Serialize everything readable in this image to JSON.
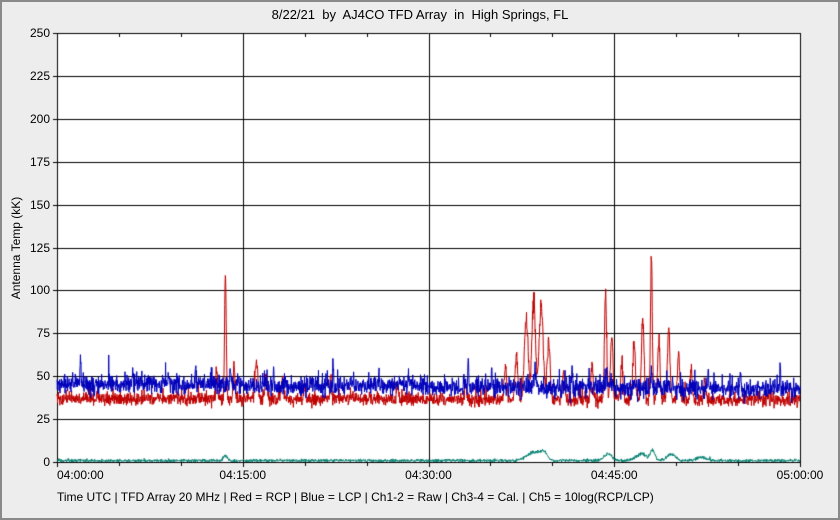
{
  "window": {
    "background": "#ededed",
    "border_color": "#8a8a8a"
  },
  "chart_data": {
    "type": "line",
    "title": "8/22/21  by  AJ4CO TFD Array  in  High Springs, FL",
    "ylabel": "Antenna Temp (kK)",
    "xlabel": "Time UTC | TFD Array 20 MHz | Red = RCP | Blue = LCP | Ch1-2 = Raw | Ch3-4 = Cal. | Ch5 = 10log(RCP/LCP)",
    "ylim": [
      0,
      250
    ],
    "ytick_step": 25,
    "ytick_labels": [
      "250",
      "225",
      "200",
      "175",
      "150",
      "125",
      "100",
      "75",
      "50",
      "25",
      "0"
    ],
    "xtick_labels": [
      "04:00:00",
      "04:15:00",
      "04:30:00",
      "04:45:00",
      "05:00:00"
    ],
    "xtick_minutes": [
      0,
      15,
      30,
      45,
      60
    ],
    "x_minor_step_minutes": 5,
    "grid": true,
    "plot_background": "#ffffff",
    "axis_color": "#000000",
    "series": [
      {
        "name": "Ch5 = 10log(RCP/LCP)",
        "color": "#008070",
        "baseline_start": 0.8,
        "baseline_end": 0.8,
        "noise_sd": 0.45,
        "impulse_p": 0.01,
        "impulse_max": 1.5,
        "clip_min": 0,
        "spikes": [
          {
            "t": 13.6,
            "v": 3.5,
            "w": 0.5
          },
          {
            "t": 38.5,
            "v": 6,
            "w": 1.6
          },
          {
            "t": 39.3,
            "v": 5,
            "w": 0.8
          },
          {
            "t": 44.5,
            "v": 5,
            "w": 0.9
          },
          {
            "t": 47.2,
            "v": 5,
            "w": 1.2
          },
          {
            "t": 48.1,
            "v": 7,
            "w": 0.5
          },
          {
            "t": 49.6,
            "v": 5,
            "w": 1.0
          },
          {
            "t": 52.0,
            "v": 3,
            "w": 1.0
          }
        ]
      },
      {
        "name": "Red = RCP",
        "color": "#c00000",
        "baseline_start": 37,
        "baseline_end": 36,
        "noise_sd": 1.8,
        "impulse_p": 0.05,
        "impulse_max": 7,
        "clip_min": 31,
        "spikes": [
          {
            "t": 12.9,
            "v": 55,
            "w": 0.2
          },
          {
            "t": 13.6,
            "v": 116,
            "w": 0.18
          },
          {
            "t": 14.3,
            "v": 57,
            "w": 0.22
          },
          {
            "t": 16.1,
            "v": 62,
            "w": 0.3
          },
          {
            "t": 16.9,
            "v": 52,
            "w": 0.25
          },
          {
            "t": 18.2,
            "v": 50,
            "w": 0.25
          },
          {
            "t": 20.0,
            "v": 46,
            "w": 0.2
          },
          {
            "t": 22.1,
            "v": 50,
            "w": 0.2
          },
          {
            "t": 27.5,
            "v": 45,
            "w": 0.2
          },
          {
            "t": 33.0,
            "v": 46,
            "w": 0.2
          },
          {
            "t": 36.2,
            "v": 56,
            "w": 0.3
          },
          {
            "t": 37.1,
            "v": 64,
            "w": 0.3
          },
          {
            "t": 37.9,
            "v": 88,
            "w": 0.45
          },
          {
            "t": 38.5,
            "v": 101,
            "w": 0.4
          },
          {
            "t": 39.1,
            "v": 95,
            "w": 0.45
          },
          {
            "t": 39.7,
            "v": 72,
            "w": 0.35
          },
          {
            "t": 40.9,
            "v": 54,
            "w": 0.25
          },
          {
            "t": 43.2,
            "v": 58,
            "w": 0.25
          },
          {
            "t": 44.3,
            "v": 104,
            "w": 0.25
          },
          {
            "t": 44.8,
            "v": 80,
            "w": 0.25
          },
          {
            "t": 45.6,
            "v": 60,
            "w": 0.25
          },
          {
            "t": 46.6,
            "v": 73,
            "w": 0.28
          },
          {
            "t": 47.3,
            "v": 90,
            "w": 0.28
          },
          {
            "t": 48.0,
            "v": 130,
            "w": 0.2
          },
          {
            "t": 48.6,
            "v": 76,
            "w": 0.26
          },
          {
            "t": 49.4,
            "v": 79,
            "w": 0.3
          },
          {
            "t": 50.2,
            "v": 66,
            "w": 0.26
          },
          {
            "t": 51.2,
            "v": 56,
            "w": 0.26
          },
          {
            "t": 52.3,
            "v": 49,
            "w": 0.25
          }
        ]
      },
      {
        "name": "Blue = LCP",
        "color": "#0000bb",
        "baseline_start": 45.5,
        "baseline_end": 42.5,
        "noise_sd": 2.6,
        "impulse_p": 0.06,
        "impulse_max": 9,
        "clip_min": 34,
        "spikes": [
          {
            "t": 1.9,
            "v": 66,
            "w": 0.1
          },
          {
            "t": 4.2,
            "v": 54,
            "w": 0.1
          },
          {
            "t": 6.1,
            "v": 56,
            "w": 0.1
          },
          {
            "t": 9.0,
            "v": 54,
            "w": 0.1
          },
          {
            "t": 11.2,
            "v": 59,
            "w": 0.1
          },
          {
            "t": 14.0,
            "v": 55,
            "w": 0.12
          },
          {
            "t": 17.5,
            "v": 54,
            "w": 0.1
          },
          {
            "t": 22.3,
            "v": 57,
            "w": 0.1
          },
          {
            "t": 26.0,
            "v": 53,
            "w": 0.1
          },
          {
            "t": 28.4,
            "v": 54,
            "w": 0.1
          },
          {
            "t": 33.2,
            "v": 63,
            "w": 0.1
          },
          {
            "t": 35.1,
            "v": 56,
            "w": 0.1
          },
          {
            "t": 38.6,
            "v": 55,
            "w": 0.2
          },
          {
            "t": 41.6,
            "v": 56,
            "w": 0.1
          },
          {
            "t": 44.4,
            "v": 55,
            "w": 0.12
          },
          {
            "t": 48.0,
            "v": 57,
            "w": 0.12
          },
          {
            "t": 52.6,
            "v": 54,
            "w": 0.1
          },
          {
            "t": 55.2,
            "v": 55,
            "w": 0.1
          },
          {
            "t": 58.4,
            "v": 56,
            "w": 0.1
          }
        ]
      }
    ]
  }
}
